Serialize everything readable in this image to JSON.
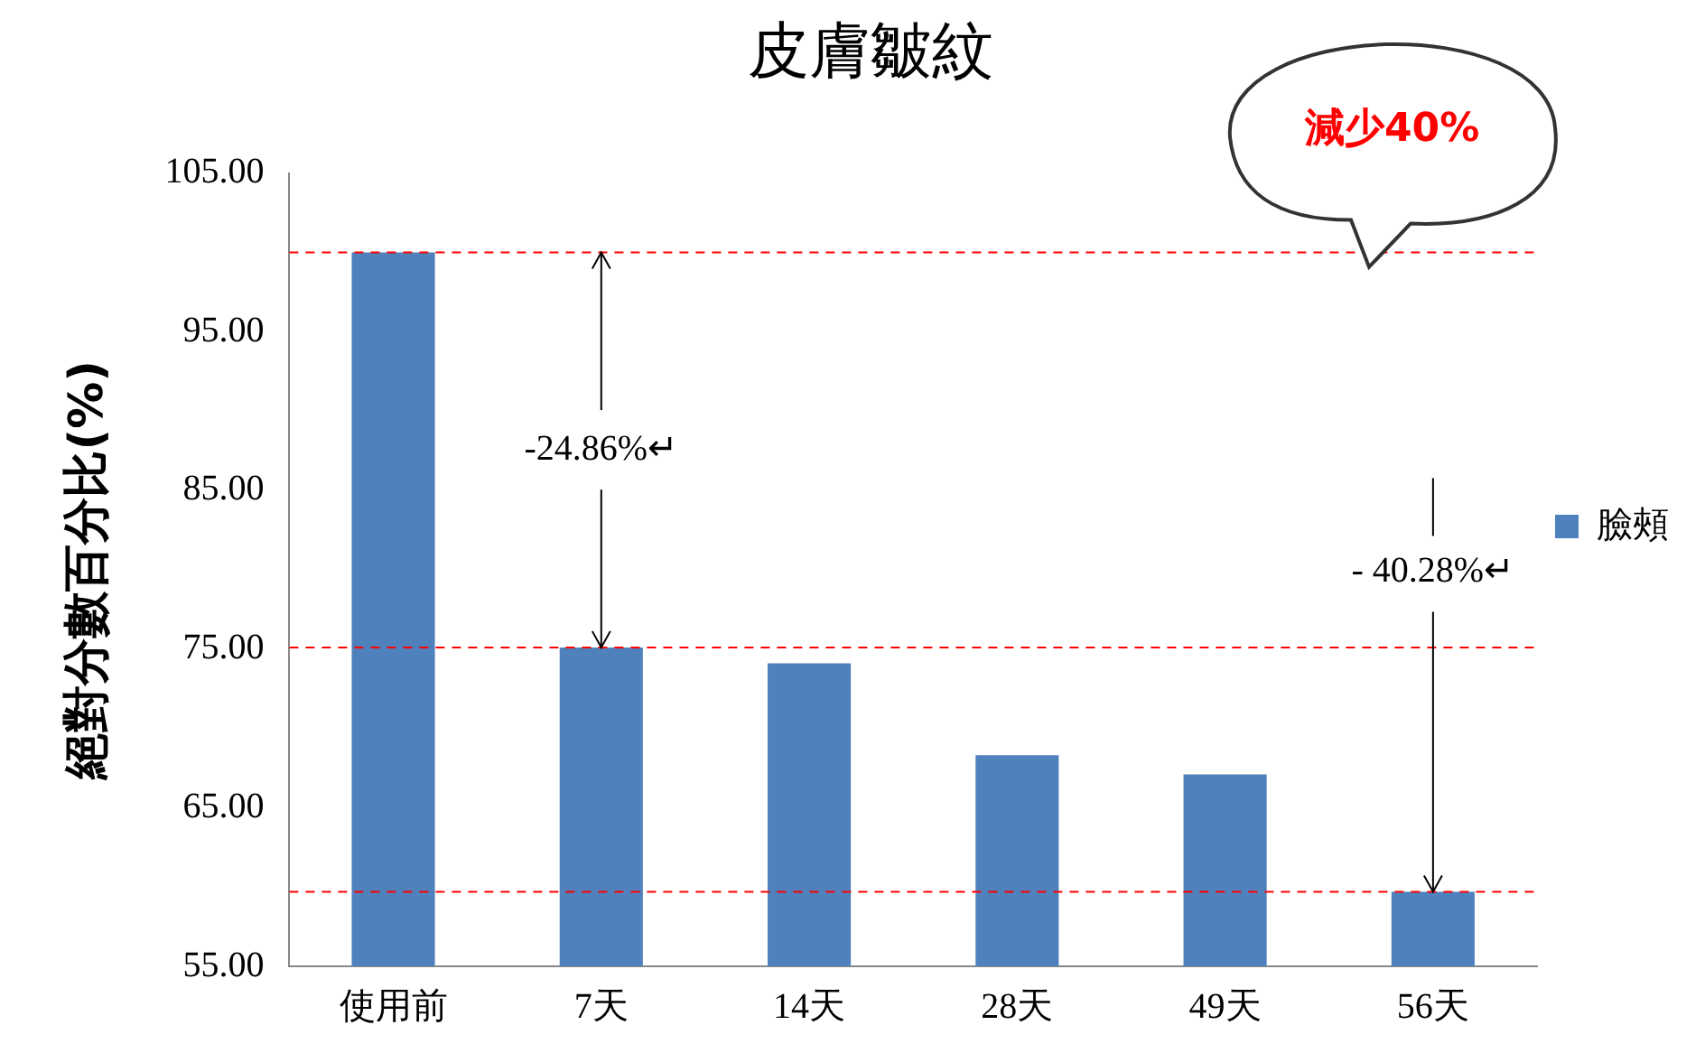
{
  "chart_data": {
    "type": "bar",
    "title": "皮膚皺紋",
    "ylabel": "絕對分數百分比(%)",
    "categories": [
      "使用前",
      "7天",
      "14天",
      "28天",
      "49天",
      "56天"
    ],
    "series": [
      {
        "name": "臉頰",
        "color": "#4f81bd",
        "values": [
          100,
          75.1,
          74.1,
          68.3,
          67.1,
          59.7
        ]
      }
    ],
    "ylim": [
      55,
      105
    ],
    "yticks": [
      {
        "value": 55,
        "label": "55.00"
      },
      {
        "value": 65,
        "label": "65.00"
      },
      {
        "value": 75,
        "label": "75.00"
      },
      {
        "value": 85,
        "label": "85.00"
      },
      {
        "value": 95,
        "label": "95.00"
      },
      {
        "value": 105,
        "label": "105.00"
      }
    ],
    "ref_lines": [
      {
        "axis": "y",
        "value": 100,
        "color": "#ff0000",
        "line_style": "dashed"
      },
      {
        "axis": "y",
        "value": 75.1,
        "color": "#ff0000",
        "line_style": "dashed"
      },
      {
        "axis": "y",
        "value": 59.7,
        "color": "#ff0000",
        "line_style": "dashed"
      }
    ],
    "annotations": [
      {
        "text": "-24.86%↵",
        "x": "7天",
        "y": 75.1
      },
      {
        "text": "- 40.28%↵",
        "x": "56天",
        "y": 59.7
      },
      "減少40%"
    ],
    "grid": false,
    "legend": "right"
  }
}
